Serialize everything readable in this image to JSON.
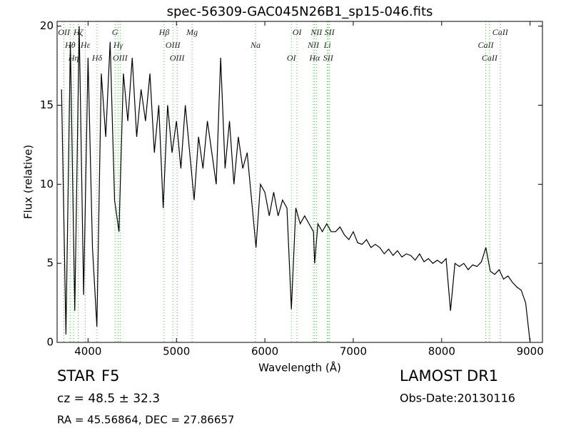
{
  "chart_data": {
    "type": "line",
    "title": "spec-56309-GAC045N26B1_sp15-046.fits",
    "x_label": "Wavelength (Å)",
    "y_label": "Flux (relative)",
    "color": "#000000",
    "line_color": "#44bb44",
    "xlim": [
      3650,
      9140
    ],
    "ylim": [
      0,
      20.3
    ],
    "xticks": [
      4000,
      5000,
      6000,
      7000,
      8000,
      9000
    ],
    "yticks": [
      0,
      5,
      10,
      15,
      20
    ],
    "x": [
      3700,
      3750,
      3800,
      3850,
      3900,
      3950,
      4000,
      4050,
      4100,
      4150,
      4200,
      4250,
      4300,
      4350,
      4400,
      4450,
      4500,
      4550,
      4600,
      4650,
      4700,
      4750,
      4800,
      4850,
      4900,
      4950,
      5000,
      5050,
      5100,
      5150,
      5200,
      5250,
      5300,
      5350,
      5400,
      5450,
      5500,
      5550,
      5600,
      5650,
      5700,
      5750,
      5800,
      5850,
      5900,
      5950,
      6000,
      6050,
      6100,
      6150,
      6200,
      6250,
      6300,
      6350,
      6400,
      6450,
      6500,
      6550,
      6563,
      6600,
      6650,
      6700,
      6750,
      6800,
      6850,
      6900,
      6950,
      7000,
      7050,
      7100,
      7150,
      7200,
      7250,
      7300,
      7350,
      7400,
      7450,
      7500,
      7550,
      7600,
      7650,
      7700,
      7750,
      7800,
      7850,
      7900,
      7950,
      8000,
      8050,
      8100,
      8150,
      8200,
      8250,
      8300,
      8350,
      8400,
      8450,
      8500,
      8550,
      8600,
      8650,
      8700,
      8750,
      8800,
      8850,
      8900,
      8950,
      9000
    ],
    "values": [
      16,
      0.5,
      19,
      2,
      20,
      3,
      18,
      6,
      1,
      17,
      13,
      19,
      9,
      7,
      17,
      14,
      18,
      13,
      16,
      14,
      17,
      12,
      15,
      8.5,
      15,
      12,
      14,
      11,
      15,
      12,
      9,
      13,
      11,
      14,
      12,
      10,
      18,
      11,
      14,
      10,
      13,
      11,
      12,
      9,
      6,
      10,
      9.5,
      8,
      9.5,
      8,
      9,
      8.5,
      2.1,
      8.5,
      7.5,
      8,
      7.5,
      7,
      5,
      7.5,
      7,
      7.5,
      7,
      7,
      7.3,
      6.8,
      6.5,
      7,
      6.3,
      6.2,
      6.5,
      6,
      6.2,
      6,
      5.6,
      5.9,
      5.5,
      5.8,
      5.4,
      5.6,
      5.5,
      5.2,
      5.6,
      5.1,
      5.3,
      5,
      5.2,
      5,
      5.3,
      2,
      5,
      4.8,
      5,
      4.6,
      4.9,
      4.8,
      5.1,
      6,
      4.5,
      4.3,
      4.6,
      4,
      4.2,
      3.8,
      3.5,
      3.3,
      2.5,
      0
    ],
    "lines": [
      {
        "label": "OII",
        "wavelength": 3727
      },
      {
        "label": "Hθ",
        "wavelength": 3798
      },
      {
        "label": "Hη",
        "wavelength": 3836
      },
      {
        "label": "Hζ",
        "wavelength": 3890
      },
      {
        "label": "Hε",
        "wavelength": 3970
      },
      {
        "label": "Hδ",
        "wavelength": 4102
      },
      {
        "label": "G",
        "wavelength": 4305
      },
      {
        "label": "Hγ",
        "wavelength": 4341
      },
      {
        "label": "OIII",
        "wavelength": 4363
      },
      {
        "label": "Hβ",
        "wavelength": 4861
      },
      {
        "label": "OIII",
        "wavelength": 4959
      },
      {
        "label": "OIII",
        "wavelength": 5007
      },
      {
        "label": "Mg",
        "wavelength": 5177
      },
      {
        "label": "Na",
        "wavelength": 5895
      },
      {
        "label": "OI",
        "wavelength": 6300
      },
      {
        "label": "OI",
        "wavelength": 6363
      },
      {
        "label": "NII",
        "wavelength": 6548
      },
      {
        "label": "Hα",
        "wavelength": 6563
      },
      {
        "label": "NII",
        "wavelength": 6583
      },
      {
        "label": "Li",
        "wavelength": 6707
      },
      {
        "label": "SII",
        "wavelength": 6716
      },
      {
        "label": "SII",
        "wavelength": 6731
      },
      {
        "label": "CaII",
        "wavelength": 8498
      },
      {
        "label": "CaII",
        "wavelength": 8542
      },
      {
        "label": "CaII",
        "wavelength": 8662
      }
    ]
  },
  "footer": {
    "object_class": "STAR",
    "subclass": "F5",
    "redshift": "cz = 48.5  ± 32.3",
    "coordinates": "RA = 45.56864, DEC = 27.86657",
    "survey": "LAMOST DR1",
    "obs_date": "Obs-Date:20130116"
  }
}
